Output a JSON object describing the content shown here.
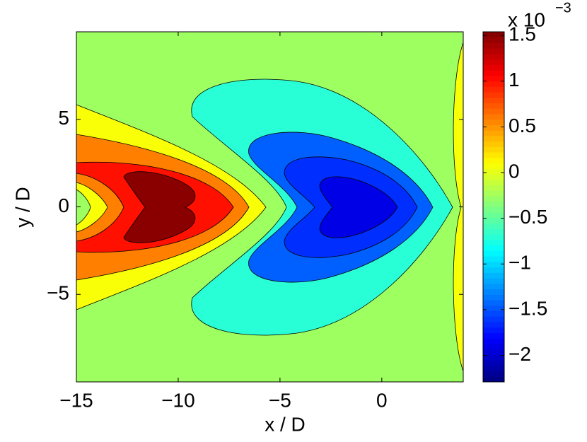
{
  "chart_data": {
    "type": "contour",
    "xlabel": "x / D",
    "ylabel": "y / D",
    "xlim": [
      -15,
      4
    ],
    "ylim": [
      -10,
      10
    ],
    "xticks": [
      {
        "value": -15,
        "label": "−15"
      },
      {
        "value": -10,
        "label": "−10"
      },
      {
        "value": -5,
        "label": "−5"
      },
      0
    ],
    "yticks": [
      {
        "value": -5,
        "label": "−5"
      },
      0,
      5
    ],
    "colormap": "jet",
    "clim": [
      -2.29,
      1.54
    ],
    "cticks": [
      {
        "value": -2,
        "label": "−2"
      },
      {
        "value": -1.5,
        "label": "−1.5"
      },
      {
        "value": -1,
        "label": "−1"
      },
      {
        "value": -0.5,
        "label": "−0.5"
      },
      0,
      0.5,
      1,
      1.5
    ],
    "colorbar_multiplier": "x 10",
    "colorbar_exponent": "−3",
    "levels": [
      -0.26,
      0.08,
      -0.7,
      -1.45,
      -1.64,
      -1.9,
      0.58,
      0.08,
      -0.26,
      1.0,
      1.5
    ]
  }
}
